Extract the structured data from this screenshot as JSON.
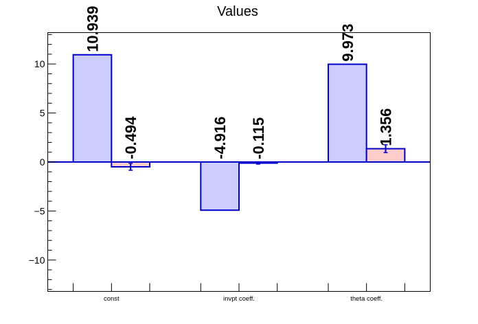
{
  "chart_data": {
    "type": "bar",
    "title": "Values",
    "categories": [
      "const",
      "invpt coeff.",
      "theta coeff."
    ],
    "series": [
      {
        "values": [
          10.939,
          -4.916,
          9.973
        ],
        "errors": [
          0,
          0,
          0
        ],
        "fill": "#ccccff",
        "stroke": "#0000cc"
      },
      {
        "values": [
          -0.494,
          -0.115,
          1.356
        ],
        "errors": [
          0.35,
          0.1,
          0.4
        ],
        "fill": "#ffcccc",
        "stroke": "#0000cc"
      }
    ],
    "value_labels": [
      [
        "10.939",
        "-4.916",
        "9.973"
      ],
      [
        "-0.494",
        "-0.115",
        "1.356"
      ]
    ],
    "ylim": [
      -13.2,
      13.2
    ],
    "yticks": [
      -10,
      -5,
      0,
      5,
      10
    ],
    "ytick_labels": [
      "−10",
      "−5",
      "0",
      "5",
      "10"
    ],
    "xlabel": "",
    "ylabel": "",
    "grid": false,
    "legend": "none",
    "zero_line_color": "#0000cc"
  }
}
